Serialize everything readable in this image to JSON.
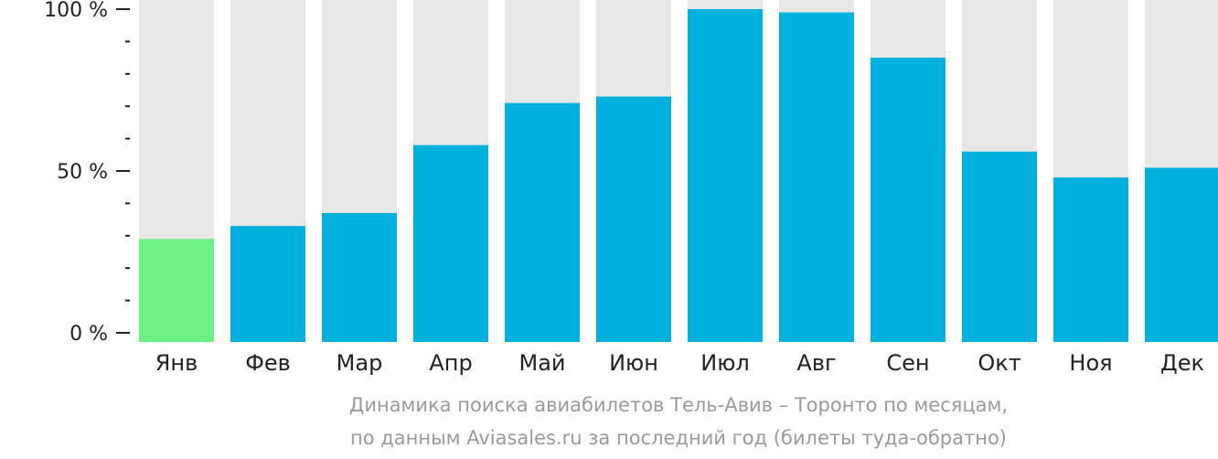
{
  "chart_data": {
    "type": "bar",
    "categories": [
      "Янв",
      "Фев",
      "Мар",
      "Апр",
      "Май",
      "Июн",
      "Июл",
      "Авг",
      "Сен",
      "Окт",
      "Ноя",
      "Дек"
    ],
    "values": [
      29,
      33,
      37,
      58,
      71,
      73,
      100,
      99,
      85,
      56,
      48,
      51
    ],
    "ylim": [
      0,
      100
    ],
    "y_ticks": [
      {
        "value": 0,
        "label": "0 %"
      },
      {
        "value": 50,
        "label": "50 %"
      },
      {
        "value": 100,
        "label": "100 %"
      }
    ],
    "minor_tick_step": 10,
    "highlight_index": 0,
    "colors": {
      "bar": "#00b0dd",
      "highlight": "#6cf185",
      "background_bar": "#e7e7e7",
      "axis": "#222222"
    },
    "caption_lines": [
      "Динамика поиска авиабилетов Тель-Авив – Торонто по месяцам,",
      "по данным Aviasales.ru за последний год (билеты туда-обратно)"
    ]
  }
}
